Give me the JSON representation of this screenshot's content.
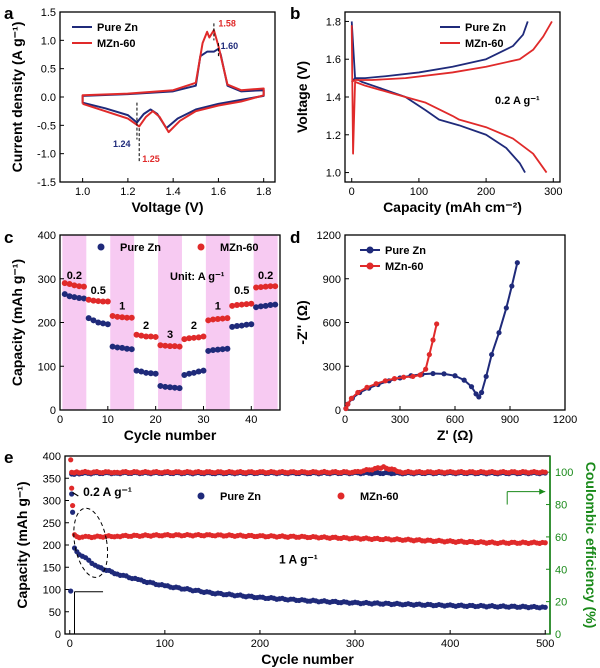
{
  "colors": {
    "pure_zn": "#1f2a7a",
    "mzn60": "#e02a2a",
    "ce_axis": "#1a8a1a",
    "rate_band": "#f4b8ee"
  },
  "chart_data": [
    {
      "panel": "a",
      "type": "line",
      "xlabel": "Voltage (V)",
      "ylabel": "Current density (A g⁻¹)",
      "xlim": [
        0.9,
        1.85
      ],
      "ylim": [
        -1.5,
        1.5
      ],
      "xticks": [
        "1.0",
        "1.2",
        "1.4",
        "1.6",
        "1.8"
      ],
      "yticks": [
        "-1.5",
        "-1.0",
        "-0.5",
        "0.0",
        "0.5",
        "1.0",
        "1.5"
      ],
      "legend_position": "top-left",
      "annotations": [
        "1.58",
        "1.60",
        "1.24",
        "1.25"
      ],
      "series": [
        {
          "name": "Pure Zn",
          "color_key": "pure_zn",
          "x": [
            1.0,
            1.1,
            1.2,
            1.24,
            1.27,
            1.3,
            1.33,
            1.37,
            1.42,
            1.5,
            1.6,
            1.7,
            1.8,
            1.8,
            1.7,
            1.64,
            1.61,
            1.6,
            1.58,
            1.55,
            1.52,
            1.5,
            1.4,
            1.2,
            1.0,
            1.0
          ],
          "y": [
            -0.1,
            -0.2,
            -0.32,
            -0.45,
            -0.3,
            -0.22,
            -0.3,
            -0.55,
            -0.38,
            -0.22,
            -0.12,
            -0.05,
            0.02,
            0.12,
            0.1,
            0.2,
            0.75,
            0.85,
            0.8,
            0.8,
            0.72,
            0.2,
            0.1,
            0.05,
            0.02,
            -0.1
          ]
        },
        {
          "name": "MZn-60",
          "color_key": "mzn60",
          "x": [
            1.0,
            1.1,
            1.2,
            1.25,
            1.28,
            1.31,
            1.34,
            1.38,
            1.43,
            1.5,
            1.6,
            1.7,
            1.8,
            1.8,
            1.7,
            1.64,
            1.6,
            1.58,
            1.56,
            1.55,
            1.53,
            1.5,
            1.4,
            1.2,
            1.0,
            1.0
          ],
          "y": [
            -0.12,
            -0.25,
            -0.38,
            -0.52,
            -0.35,
            -0.25,
            -0.35,
            -0.62,
            -0.42,
            -0.25,
            -0.15,
            -0.08,
            0.03,
            0.15,
            0.12,
            0.22,
            0.9,
            1.18,
            1.05,
            1.15,
            0.95,
            0.25,
            0.12,
            0.06,
            0.03,
            -0.12
          ]
        }
      ]
    },
    {
      "panel": "b",
      "type": "line",
      "xlabel": "Capacity (mAh cm⁻²)",
      "ylabel": "Voltage (V)",
      "xlim": [
        -10,
        310
      ],
      "ylim": [
        0.95,
        1.85
      ],
      "xticks": [
        "0",
        "100",
        "200",
        "300"
      ],
      "yticks": [
        "1.0",
        "1.2",
        "1.4",
        "1.6",
        "1.8"
      ],
      "legend_position": "top-right",
      "annotations": [
        "0.2 A g⁻¹"
      ],
      "series": [
        {
          "name": "Pure Zn",
          "segment": "charge",
          "color_key": "pure_zn",
          "x": [
            0,
            5,
            20,
            50,
            100,
            150,
            200,
            240,
            255,
            262
          ],
          "y": [
            1.48,
            1.5,
            1.5,
            1.51,
            1.53,
            1.56,
            1.6,
            1.67,
            1.73,
            1.8
          ]
        },
        {
          "name": "Pure Zn",
          "segment": "discharge",
          "color_key": "pure_zn",
          "x": [
            0,
            5,
            15,
            40,
            80,
            110,
            130,
            160,
            200,
            230,
            250,
            258
          ],
          "y": [
            1.8,
            1.5,
            1.48,
            1.45,
            1.4,
            1.33,
            1.28,
            1.25,
            1.2,
            1.13,
            1.05,
            1.0
          ]
        },
        {
          "name": "MZn-60",
          "segment": "charge",
          "color_key": "mzn60",
          "x": [
            0,
            5,
            30,
            80,
            150,
            200,
            250,
            270,
            285,
            298
          ],
          "y": [
            1.48,
            1.49,
            1.49,
            1.5,
            1.53,
            1.56,
            1.6,
            1.65,
            1.72,
            1.8
          ]
        },
        {
          "name": "MZn-60",
          "segment": "discharge",
          "color_key": "mzn60",
          "x": [
            0,
            2,
            5,
            20,
            60,
            110,
            150,
            160,
            200,
            240,
            270,
            290
          ],
          "y": [
            1.78,
            1.1,
            1.48,
            1.46,
            1.42,
            1.37,
            1.3,
            1.28,
            1.24,
            1.18,
            1.1,
            1.0
          ]
        }
      ]
    },
    {
      "panel": "c",
      "type": "scatter",
      "xlabel": "Cycle number",
      "ylabel": "Capacity (mAh g⁻¹)",
      "xlim": [
        0,
        46
      ],
      "ylim": [
        0,
        400
      ],
      "xticks": [
        "0",
        "10",
        "20",
        "30",
        "40"
      ],
      "yticks": [
        "0",
        "100",
        "200",
        "300",
        "400"
      ],
      "legend_position": "top",
      "annotations": [
        "Unit: A g⁻¹"
      ],
      "rate_labels": [
        "0.2",
        "0.5",
        "1",
        "2",
        "3",
        "2",
        "1",
        "0.5",
        "0.2"
      ],
      "series": [
        {
          "name": "Pure Zn",
          "color_key": "pure_zn",
          "x": [
            1,
            2,
            3,
            4,
            5,
            6,
            7,
            8,
            9,
            10,
            11,
            12,
            13,
            14,
            15,
            16,
            17,
            18,
            19,
            20,
            21,
            22,
            23,
            24,
            25,
            26,
            27,
            28,
            29,
            30,
            31,
            32,
            33,
            34,
            35,
            36,
            37,
            38,
            39,
            40,
            41,
            42,
            43,
            44,
            45
          ],
          "y": [
            265,
            260,
            258,
            256,
            255,
            210,
            205,
            200,
            198,
            196,
            145,
            143,
            142,
            140,
            139,
            90,
            88,
            85,
            84,
            83,
            55,
            53,
            52,
            51,
            50,
            80,
            83,
            85,
            88,
            90,
            135,
            137,
            138,
            139,
            140,
            190,
            192,
            193,
            195,
            196,
            235,
            237,
            238,
            240,
            241
          ]
        },
        {
          "name": "MZn-60",
          "color_key": "mzn60",
          "x": [
            1,
            2,
            3,
            4,
            5,
            6,
            7,
            8,
            9,
            10,
            11,
            12,
            13,
            14,
            15,
            16,
            17,
            18,
            19,
            20,
            21,
            22,
            23,
            24,
            25,
            26,
            27,
            28,
            29,
            30,
            31,
            32,
            33,
            34,
            35,
            36,
            37,
            38,
            39,
            40,
            41,
            42,
            43,
            44,
            45
          ],
          "y": [
            290,
            288,
            285,
            283,
            282,
            252,
            250,
            249,
            248,
            248,
            215,
            213,
            212,
            211,
            211,
            172,
            170,
            168,
            168,
            167,
            148,
            147,
            146,
            146,
            145,
            162,
            164,
            165,
            166,
            168,
            205,
            207,
            208,
            209,
            210,
            238,
            240,
            241,
            242,
            243,
            280,
            281,
            282,
            283,
            283
          ]
        }
      ]
    },
    {
      "panel": "d",
      "type": "line",
      "xlabel": "Z' (Ω)",
      "ylabel": "-Z'' (Ω)",
      "xlim": [
        0,
        1200
      ],
      "ylim": [
        0,
        1200
      ],
      "xticks": [
        "0",
        "300",
        "600",
        "900",
        "1200"
      ],
      "yticks": [
        "0",
        "300",
        "600",
        "900",
        "1200"
      ],
      "legend_position": "top-left",
      "series": [
        {
          "name": "Pure Zn",
          "color_key": "pure_zn",
          "x": [
            5,
            15,
            40,
            80,
            130,
            180,
            240,
            300,
            360,
            420,
            480,
            540,
            600,
            650,
            690,
            715,
            730,
            745,
            770,
            800,
            840,
            880,
            910,
            940
          ],
          "y": [
            10,
            40,
            80,
            120,
            150,
            175,
            200,
            220,
            235,
            245,
            250,
            248,
            235,
            205,
            160,
            110,
            90,
            120,
            230,
            380,
            530,
            700,
            850,
            1010
          ]
        },
        {
          "name": "MZn-60",
          "color_key": "mzn60",
          "x": [
            5,
            15,
            35,
            70,
            120,
            170,
            220,
            270,
            320,
            370,
            410,
            440,
            460,
            480,
            500
          ],
          "y": [
            10,
            40,
            80,
            120,
            155,
            180,
            200,
            215,
            225,
            230,
            240,
            280,
            380,
            480,
            590
          ]
        }
      ]
    },
    {
      "panel": "e",
      "type": "scatter",
      "xlabel": "Cycle number",
      "ylabel": "Capacity (mAh g⁻¹)",
      "y2label": "Coulombic efficiency (%)",
      "xlim": [
        -5,
        505
      ],
      "ylim": [
        0,
        400
      ],
      "y2lim": [
        0,
        110
      ],
      "xticks": [
        "0",
        "100",
        "200",
        "300",
        "400",
        "500"
      ],
      "yticks": [
        "0",
        "50",
        "100",
        "150",
        "200",
        "250",
        "300",
        "350",
        "400"
      ],
      "y2ticks": [
        "0",
        "20",
        "40",
        "60",
        "80",
        "100"
      ],
      "legend_position": "top-center",
      "annotations": [
        "0.2 A g⁻¹",
        "1 A g⁻¹"
      ],
      "series": [
        {
          "name": "Pure Zn",
          "metric": "capacity",
          "color_key": "pure_zn",
          "x": [
            1,
            2,
            3,
            5,
            10,
            20,
            30,
            50,
            75,
            100,
            150,
            200,
            250,
            300,
            350,
            400,
            450,
            500
          ],
          "y": [
            95,
            315,
            275,
            192,
            180,
            165,
            150,
            135,
            120,
            108,
            92,
            82,
            75,
            70,
            67,
            64,
            62,
            60
          ]
        },
        {
          "name": "MZn-60",
          "metric": "capacity",
          "color_key": "mzn60",
          "x": [
            1,
            2,
            3,
            5,
            10,
            20,
            50,
            100,
            150,
            200,
            250,
            300,
            350,
            400,
            450,
            500
          ],
          "y": [
            390,
            328,
            290,
            222,
            218,
            218,
            220,
            222,
            222,
            220,
            218,
            215,
            212,
            208,
            205,
            205
          ]
        },
        {
          "name": "Pure Zn",
          "metric": "coulombic_efficiency",
          "color_key": "pure_zn",
          "x": [
            2,
            10,
            50,
            100,
            150,
            200,
            250,
            300,
            350,
            400,
            450,
            500
          ],
          "y": [
            99,
            99.3,
            99.5,
            99.5,
            99.4,
            99.5,
            99.4,
            99.5,
            99.4,
            99.5,
            99.4,
            99.5
          ]
        },
        {
          "name": "MZn-60",
          "metric": "coulombic_efficiency",
          "color_key": "mzn60",
          "x": [
            2,
            10,
            50,
            100,
            150,
            200,
            250,
            300,
            330,
            350,
            400,
            450,
            500
          ],
          "y": [
            100,
            100,
            100,
            100,
            100,
            100,
            100,
            100,
            103,
            100,
            100,
            100,
            100
          ]
        }
      ]
    }
  ]
}
